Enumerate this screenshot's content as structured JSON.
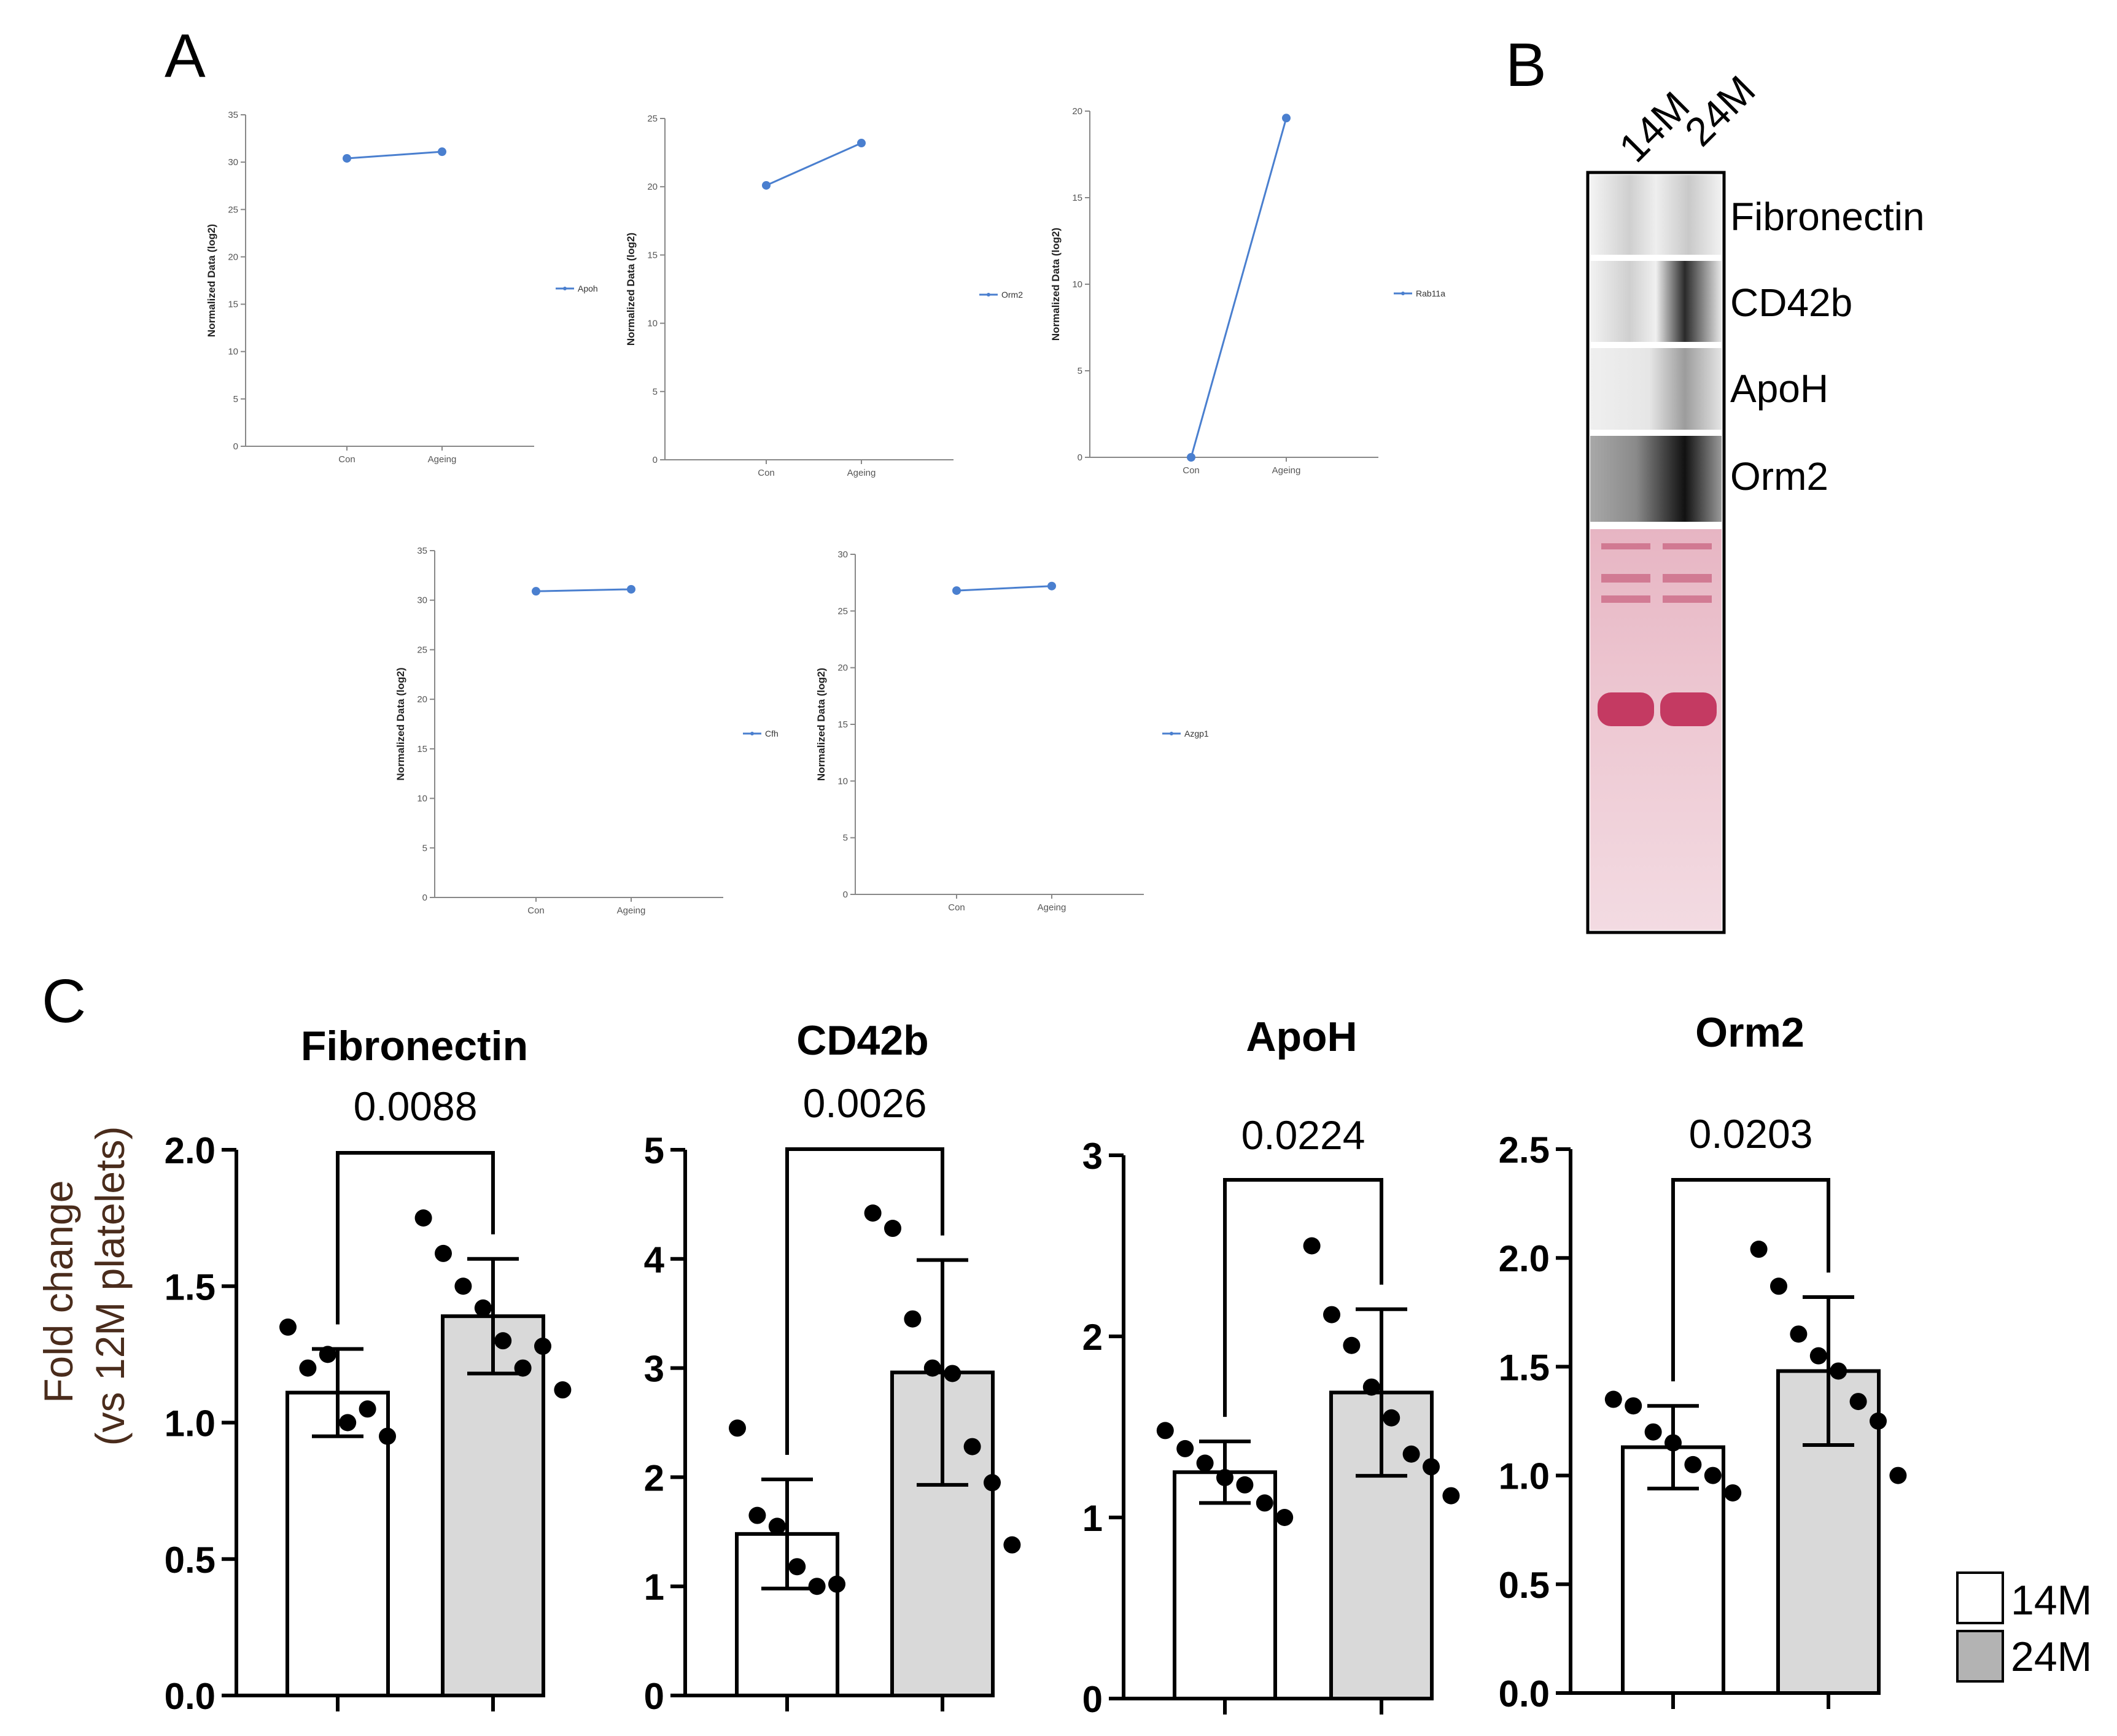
{
  "panels": {
    "a": "A",
    "b": "B",
    "c": "C"
  },
  "colors": {
    "line_series": "#4a7fcf",
    "bar_14M": "#ffffff",
    "bar_24M": "#d9d9d9",
    "legend_24M": "#b3b3b3",
    "ponceau": "#c02a55",
    "ylabel_c": "#4a2c1c"
  },
  "chart_data": [
    {
      "id": "a-apoh",
      "type": "line",
      "panel": "A",
      "title": "",
      "xlabel": "",
      "ylabel": "Normalized Data (log2)",
      "categories": [
        "Con",
        "Ageing"
      ],
      "series": [
        {
          "name": "Apoh",
          "values": [
            30.4,
            31.1
          ]
        }
      ],
      "ylim": [
        0,
        35
      ],
      "yticks": [
        0,
        5,
        10,
        15,
        20,
        25,
        30,
        35
      ],
      "legend": "right",
      "grid": false
    },
    {
      "id": "a-orm2",
      "type": "line",
      "panel": "A",
      "title": "",
      "xlabel": "",
      "ylabel": "Normalized Data (log2)",
      "categories": [
        "Con",
        "Ageing"
      ],
      "series": [
        {
          "name": "Orm2",
          "values": [
            20.1,
            23.2
          ]
        }
      ],
      "ylim": [
        0,
        25
      ],
      "yticks": [
        0,
        5,
        10,
        15,
        20,
        25
      ],
      "legend": "right",
      "grid": false
    },
    {
      "id": "a-rab11a",
      "type": "line",
      "panel": "A",
      "title": "",
      "xlabel": "",
      "ylabel": "Normalized Data (log2)",
      "categories": [
        "Con",
        "Ageing"
      ],
      "series": [
        {
          "name": "Rab11a",
          "values": [
            0,
            19.6
          ]
        }
      ],
      "ylim": [
        0,
        20
      ],
      "yticks": [
        0,
        5,
        10,
        15,
        20
      ],
      "legend": "right",
      "grid": false
    },
    {
      "id": "a-cfh",
      "type": "line",
      "panel": "A",
      "title": "",
      "xlabel": "",
      "ylabel": "Normalized Data (log2)",
      "categories": [
        "Con",
        "Ageing"
      ],
      "series": [
        {
          "name": "Cfh",
          "values": [
            30.9,
            31.1
          ]
        }
      ],
      "ylim": [
        0,
        35
      ],
      "yticks": [
        0,
        5,
        10,
        15,
        20,
        25,
        30,
        35
      ],
      "legend": "right",
      "grid": false
    },
    {
      "id": "a-azgp1",
      "type": "line",
      "panel": "A",
      "title": "",
      "xlabel": "",
      "ylabel": "Normalized Data (log2)",
      "categories": [
        "Con",
        "Ageing"
      ],
      "series": [
        {
          "name": "Azgp1",
          "values": [
            26.8,
            27.2
          ]
        }
      ],
      "ylim": [
        0,
        30
      ],
      "yticks": [
        0,
        5,
        10,
        15,
        20,
        25,
        30
      ],
      "legend": "right",
      "grid": false
    },
    {
      "id": "c-fibronectin",
      "type": "bar",
      "panel": "C",
      "title": "Fibronectin",
      "pvalue": "0.0088",
      "ylabel": "Fold change\n(vs 12M platelets)",
      "categories": [
        "14M",
        "24M"
      ],
      "values": [
        1.11,
        1.39
      ],
      "sd": [
        0.16,
        0.21
      ],
      "points": [
        [
          1.35,
          1.2,
          1.25,
          1.0,
          1.05,
          0.95
        ],
        [
          1.75,
          1.62,
          1.5,
          1.42,
          1.3,
          1.2,
          1.28,
          1.12
        ]
      ],
      "ylim": [
        0,
        2.0
      ],
      "yticks": [
        "0.0",
        "0.5",
        "1.0",
        "1.5",
        "2.0"
      ]
    },
    {
      "id": "c-cd42b",
      "type": "bar",
      "panel": "C",
      "title": "CD42b",
      "pvalue": "0.0026",
      "ylabel": "",
      "categories": [
        "14M",
        "24M"
      ],
      "values": [
        1.48,
        2.96
      ],
      "sd": [
        0.5,
        1.03
      ],
      "points": [
        [
          2.45,
          1.65,
          1.55,
          1.18,
          1.0,
          1.02
        ],
        [
          4.42,
          4.28,
          3.45,
          3.0,
          2.95,
          2.28,
          1.95,
          1.38
        ]
      ],
      "ylim": [
        0,
        5
      ],
      "yticks": [
        "0",
        "1",
        "2",
        "3",
        "4",
        "5"
      ]
    },
    {
      "id": "c-apoh",
      "type": "bar",
      "panel": "C",
      "title": "ApoH",
      "pvalue": "0.0224",
      "ylabel": "",
      "categories": [
        "14M",
        "24M"
      ],
      "values": [
        1.25,
        1.69
      ],
      "sd": [
        0.17,
        0.46
      ],
      "points": [
        [
          1.48,
          1.38,
          1.3,
          1.22,
          1.18,
          1.08,
          1.0
        ],
        [
          2.5,
          2.12,
          1.95,
          1.72,
          1.55,
          1.35,
          1.28,
          1.12
        ]
      ],
      "ylim": [
        0,
        3
      ],
      "yticks": [
        "0",
        "1",
        "2",
        "3"
      ]
    },
    {
      "id": "c-orm2",
      "type": "bar",
      "panel": "C",
      "title": "Orm2",
      "pvalue": "0.0203",
      "ylabel": "",
      "categories": [
        "14M",
        "24M"
      ],
      "values": [
        1.13,
        1.48
      ],
      "sd": [
        0.19,
        0.34
      ],
      "points": [
        [
          1.35,
          1.32,
          1.2,
          1.15,
          1.05,
          1.0,
          0.92
        ],
        [
          2.04,
          1.87,
          1.65,
          1.55,
          1.48,
          1.34,
          1.25,
          1.0
        ]
      ],
      "ylim": [
        0,
        2.5
      ],
      "yticks": [
        "0.0",
        "0.5",
        "1.0",
        "1.5",
        "2.0",
        "2.5"
      ]
    }
  ],
  "blot": {
    "lanes": [
      "14M",
      "24M"
    ],
    "bands": [
      "Fibronectin",
      "CD42b",
      "ApoH",
      "Orm2"
    ]
  },
  "legend": [
    {
      "label": "14M"
    },
    {
      "label": "24M"
    }
  ]
}
